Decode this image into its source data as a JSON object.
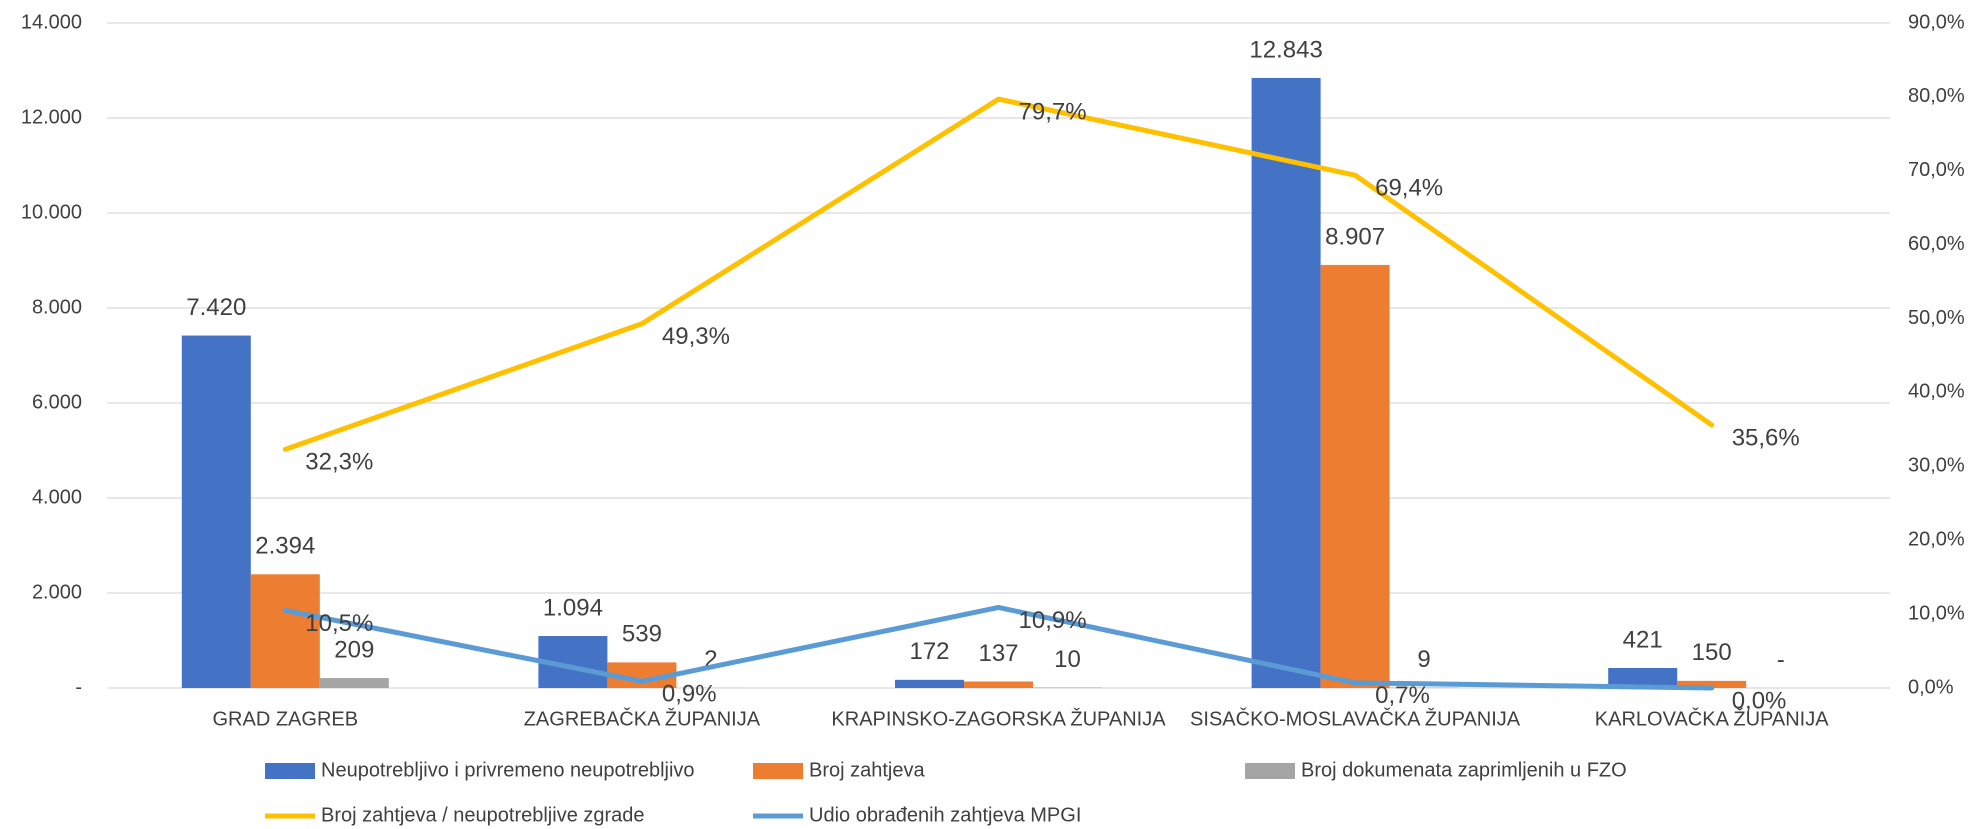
{
  "chart_data": {
    "type": "bar",
    "categories": [
      "GRAD ZAGREB",
      "ZAGREBAČKA ŽUPANIJA",
      "KRAPINSKO-ZAGORSKA ŽUPANIJA",
      "SISAČKO-MOSLAVAČKA ŽUPANIJA",
      "KARLOVAČKA ŽUPANIJA"
    ],
    "series": [
      {
        "name": "Neupotrebljivo i privremeno neupotrebljivo",
        "color": "#4472c4",
        "type": "bar",
        "values": [
          7420,
          1094,
          172,
          12843,
          421
        ],
        "value_labels": [
          "7.420",
          "1.094",
          "172",
          "12.843",
          "421"
        ]
      },
      {
        "name": "Broj zahtjeva",
        "color": "#ed7d31",
        "type": "bar",
        "values": [
          2394,
          539,
          137,
          8907,
          150
        ],
        "value_labels": [
          "2.394",
          "539",
          "137",
          "8.907",
          "150"
        ]
      },
      {
        "name": "Broj dokumenata zaprimljenih u FZO",
        "color": "#a5a5a5",
        "type": "bar",
        "values": [
          209,
          2,
          10,
          9,
          0
        ],
        "value_labels": [
          "209",
          "2",
          "10",
          "9",
          "-"
        ]
      },
      {
        "name": "Broj zahtjeva / neupotrebljive zgrade",
        "color": "#ffc000",
        "type": "line",
        "axis": "y2",
        "values": [
          32.3,
          49.3,
          79.7,
          69.4,
          35.6
        ],
        "value_labels": [
          "32,3%",
          "49,3%",
          "79,7%",
          "69,4%",
          "35,6%"
        ]
      },
      {
        "name": "Udio obrađenih zahtjeva MPGI",
        "color": "#5b9bd5",
        "type": "line",
        "axis": "y2",
        "values": [
          10.5,
          0.9,
          10.9,
          0.7,
          0.0
        ],
        "value_labels": [
          "10,5%",
          "0,9%",
          "10,9%",
          "0,7%",
          "0,0%"
        ]
      }
    ],
    "ylim": [
      0,
      14000
    ],
    "yticks": [
      {
        "value": 0,
        "label": "-"
      },
      {
        "value": 2000,
        "label": "2.000"
      },
      {
        "value": 4000,
        "label": "4.000"
      },
      {
        "value": 6000,
        "label": "6.000"
      },
      {
        "value": 8000,
        "label": "8.000"
      },
      {
        "value": 10000,
        "label": "10.000"
      },
      {
        "value": 12000,
        "label": "12.000"
      },
      {
        "value": 14000,
        "label": "14.000"
      }
    ],
    "y2lim": [
      0,
      90
    ],
    "y2ticks": [
      {
        "value": 0,
        "label": "0,0%"
      },
      {
        "value": 10,
        "label": "10,0%"
      },
      {
        "value": 20,
        "label": "20,0%"
      },
      {
        "value": 30,
        "label": "30,0%"
      },
      {
        "value": 40,
        "label": "40,0%"
      },
      {
        "value": 50,
        "label": "50,0%"
      },
      {
        "value": 60,
        "label": "60,0%"
      },
      {
        "value": 70,
        "label": "70,0%"
      },
      {
        "value": 80,
        "label": "80,0%"
      },
      {
        "value": 90,
        "label": "90,0%"
      }
    ],
    "grid": true,
    "legend": "bottom"
  }
}
